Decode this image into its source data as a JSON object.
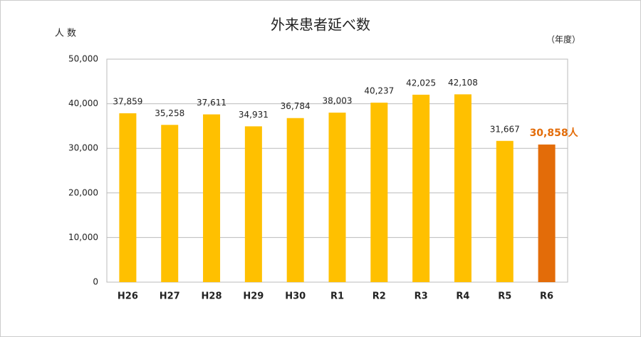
{
  "chart_data": {
    "type": "bar",
    "title": "外来患者延べ数",
    "y_label": "人 数",
    "x_unit": "（年度）",
    "categories": [
      "H26",
      "H27",
      "H28",
      "H29",
      "H30",
      "R1",
      "R2",
      "R3",
      "R4",
      "R5",
      "R6"
    ],
    "values": [
      37859,
      35258,
      37611,
      34931,
      36784,
      38003,
      40237,
      42025,
      42108,
      31667,
      30858
    ],
    "value_labels": [
      "37,859",
      "35,258",
      "37,611",
      "34,931",
      "36,784",
      "38,003",
      "40,237",
      "42,025",
      "42,108",
      "31,667",
      "30,858人"
    ],
    "color": "#ffc000",
    "colors": [
      "#ffc000",
      "#ffc000",
      "#ffc000",
      "#ffc000",
      "#ffc000",
      "#ffc000",
      "#ffc000",
      "#ffc000",
      "#ffc000",
      "#ffc000",
      "#e36c09"
    ],
    "ylim": [
      0,
      50000
    ],
    "yticks": [
      0,
      {
        "value": 10000,
        "label": "10,000"
      },
      {
        "value": 20000,
        "label": "20,000"
      },
      {
        "value": 30000,
        "label": "30,000"
      },
      {
        "value": 40000,
        "label": "40,000"
      },
      {
        "value": 50000,
        "label": "50,000"
      }
    ],
    "grid": true
  }
}
